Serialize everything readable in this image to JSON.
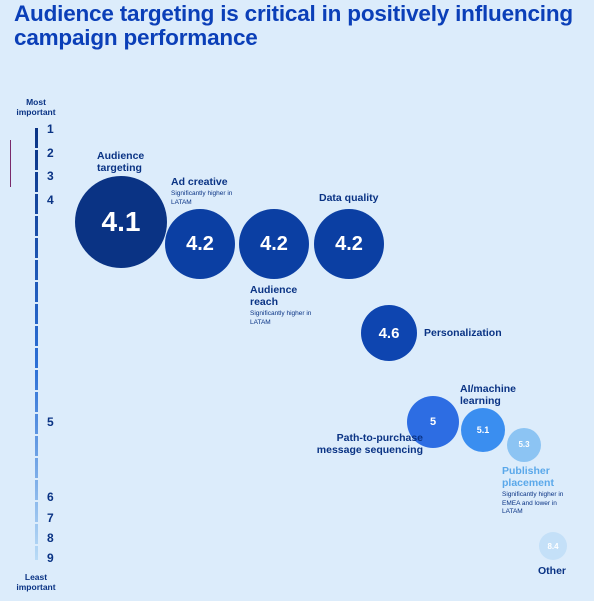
{
  "chart_data": {
    "type": "bubble",
    "title": "Audience targeting is critical in positively influencing campaign performance",
    "y_top_label": "Most important",
    "y_bottom_label": "Least important",
    "ylim": [
      1,
      9
    ],
    "yticks": [
      1,
      2,
      3,
      4,
      5,
      6,
      7,
      8,
      9
    ],
    "categories": [
      "Audience targeting",
      "Ad creative",
      "Audience reach",
      "Data quality",
      "Personalization",
      "Path-to-purchase message sequencing",
      "AI/machine learning",
      "Publisher placement",
      "Other"
    ],
    "values": [
      4.1,
      4.2,
      4.2,
      4.2,
      4.6,
      5,
      5.1,
      5.3,
      8.4
    ],
    "colors": [
      "#0a3384",
      "#0b3fa3",
      "#0b3fa3",
      "#0b3fa3",
      "#0e45b0",
      "#2d6de3",
      "#3a8ef0",
      "#8cc4f3",
      "#c4e0f8"
    ],
    "notes": [
      null,
      "Significantly higher in LATAM",
      "Significantly higher in LATAM",
      null,
      null,
      null,
      null,
      "Significantly higher in EMEA and lower in LATAM",
      null
    ]
  }
}
